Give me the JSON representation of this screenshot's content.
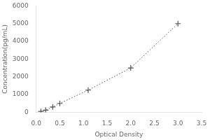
{
  "chart_data": {
    "type": "line",
    "x": [
      0.1,
      0.2,
      0.35,
      0.5,
      1.1,
      2.0,
      3.0
    ],
    "values": [
      50,
      120,
      300,
      500,
      1250,
      2500,
      5000
    ],
    "xlabel": "Optical Density",
    "ylabel": "Concentration(pg/mL)",
    "xlim": [
      0,
      3.5
    ],
    "ylim": [
      0,
      6000
    ],
    "xticks": [
      {
        "value": 0,
        "label": "0.0"
      },
      0.5,
      {
        "value": 1.0,
        "label": "1.0"
      },
      1.5,
      {
        "value": 2.0,
        "label": "2.0"
      },
      2.5,
      {
        "value": 3.0,
        "label": "3.0"
      },
      3.5
    ],
    "yticks": [
      0,
      1000,
      2000,
      3000,
      4000,
      5000,
      6000
    ],
    "color": "#555555",
    "marker": "+",
    "line_style": "dotted",
    "grid": false
  }
}
